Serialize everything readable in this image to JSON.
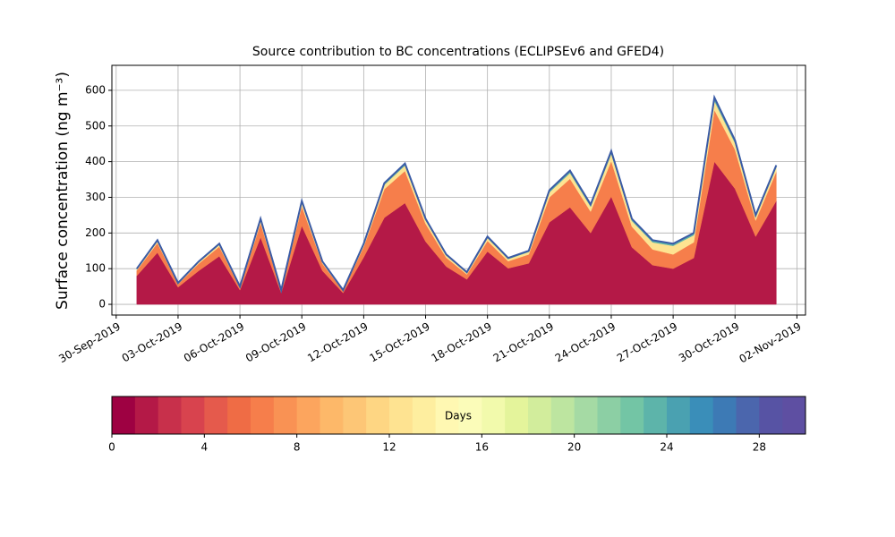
{
  "chart_data": [
    {
      "type": "stacked_area",
      "title": "Source contribution to BC concentrations (ECLIPSEv6 and GFED4)",
      "y_label": "Surface concentration (ng m⁻³)",
      "x": [
        "2019-10-01",
        "2019-10-02",
        "2019-10-03",
        "2019-10-04",
        "2019-10-05",
        "2019-10-06",
        "2019-10-07",
        "2019-10-08",
        "2019-10-09",
        "2019-10-10",
        "2019-10-11",
        "2019-10-12",
        "2019-10-13",
        "2019-10-14",
        "2019-10-15",
        "2019-10-16",
        "2019-10-17",
        "2019-10-18",
        "2019-10-19",
        "2019-10-20",
        "2019-10-21",
        "2019-10-22",
        "2019-10-23",
        "2019-10-24",
        "2019-10-25",
        "2019-10-26",
        "2019-10-27",
        "2019-10-28",
        "2019-10-29",
        "2019-10-30",
        "2019-10-31",
        "2019-11-01"
      ],
      "series": [
        {
          "color": "#b41947",
          "values": [
            80,
            145,
            48,
            94,
            135,
            40,
            188,
            32,
            220,
            94,
            32,
            132,
            243,
            284,
            176,
            106,
            70,
            148,
            101,
            115,
            230,
            272,
            200,
            302,
            160,
            110,
            100,
            130,
            400,
            324,
            190,
            290
          ]
        },
        {
          "color": "#f67e4b",
          "values": [
            15,
            27,
            9,
            20,
            27,
            7,
            40,
            6,
            55,
            20,
            6,
            30,
            80,
            90,
            50,
            25,
            14,
            30,
            20,
            25,
            70,
            80,
            60,
            100,
            58,
            44,
            40,
            44,
            145,
            110,
            45,
            82
          ]
        },
        {
          "color": "#fee391",
          "values": [
            3,
            5,
            2,
            4,
            5,
            2,
            8,
            1,
            10,
            4,
            1,
            5,
            12,
            15,
            10,
            6,
            4,
            8,
            6,
            7,
            14,
            16,
            14,
            20,
            16,
            20,
            24,
            20,
            25,
            18,
            10,
            12
          ]
        },
        {
          "color": "#5db4aa",
          "values": [
            2,
            3,
            1,
            2,
            3,
            1,
            4,
            1,
            5,
            2,
            1,
            3,
            5,
            6,
            4,
            3,
            2,
            4,
            3,
            3,
            6,
            7,
            6,
            8,
            6,
            6,
            6,
            6,
            10,
            8,
            5,
            6
          ]
        }
      ],
      "line_color": "#3b5ba5",
      "xlim": [
        "2019-09-29T19:00",
        "2019-11-02T10:00"
      ],
      "xticks": [
        {
          "value": "2019-09-30",
          "label": "30-Sep-2019"
        },
        {
          "value": "2019-10-03",
          "label": "03-Oct-2019"
        },
        {
          "value": "2019-10-06",
          "label": "06-Oct-2019"
        },
        {
          "value": "2019-10-09",
          "label": "09-Oct-2019"
        },
        {
          "value": "2019-10-12",
          "label": "12-Oct-2019"
        },
        {
          "value": "2019-10-15",
          "label": "15-Oct-2019"
        },
        {
          "value": "2019-10-18",
          "label": "18-Oct-2019"
        },
        {
          "value": "2019-10-21",
          "label": "21-Oct-2019"
        },
        {
          "value": "2019-10-24",
          "label": "24-Oct-2019"
        },
        {
          "value": "2019-10-27",
          "label": "27-Oct-2019"
        },
        {
          "value": "2019-10-30",
          "label": "30-Oct-2019"
        },
        {
          "value": "2019-11-02",
          "label": "02-Nov-2019"
        }
      ],
      "ylim": [
        -30,
        670
      ],
      "yticks": [
        0,
        100,
        200,
        300,
        400,
        500,
        600
      ],
      "grid": true
    },
    {
      "type": "colorbar",
      "label": "Days",
      "lim": [
        0,
        30
      ],
      "ticks": [
        0,
        4,
        8,
        12,
        16,
        20,
        24,
        28
      ],
      "colors": [
        "#9e0142",
        "#b41947",
        "#c8304b",
        "#d8434e",
        "#e55a4c",
        "#ef6c45",
        "#f67e4b",
        "#f99254",
        "#fca55e",
        "#fdb869",
        "#fdc676",
        "#fed683",
        "#fee391",
        "#feee9f",
        "#fff8b2",
        "#fbfcb9",
        "#f2faac",
        "#e4f49b",
        "#d2ed9c",
        "#bde5a0",
        "#a5daa4",
        "#8ccfa4",
        "#73c5a5",
        "#5db4aa",
        "#4aa1b1",
        "#3a8eb9",
        "#3d7ab5",
        "#4b66ad",
        "#5753a4",
        "#5e4fa2"
      ]
    }
  ]
}
